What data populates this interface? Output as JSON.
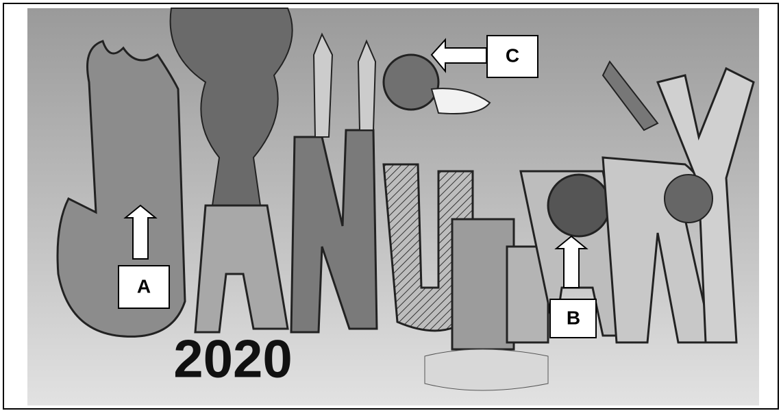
{
  "labels": {
    "a": "A",
    "b": "B",
    "c": "C"
  },
  "year": "2020"
}
